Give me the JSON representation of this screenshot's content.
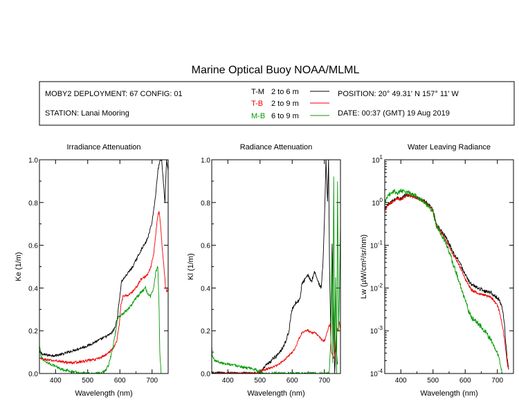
{
  "title": "Marine Optical Buoy NOAA/MLML",
  "info": {
    "deployment": "MOBY2 DEPLOYMENT: 67 CONFIG: 01",
    "station": "STATION: Lanai Mooring",
    "position": "POSITION: 20° 49.31' N   157° 11' W",
    "date": "DATE: 00:37 (GMT) 19 Aug 2019",
    "legend": [
      {
        "key": "T-M",
        "range": "2 to 6  m",
        "color": "#000000"
      },
      {
        "key": "T-B",
        "range": "2 to 9  m",
        "color": "#ee0000"
      },
      {
        "key": "M-B",
        "range": "6 to 9  m",
        "color": "#00a000"
      }
    ]
  },
  "chart_data": [
    {
      "type": "line",
      "title": "Irradiance Attenuation",
      "xlabel": "Wavelength (nm)",
      "ylabel": "Ke  (1/m)",
      "xlim": [
        350,
        750
      ],
      "ylim": [
        0,
        1
      ],
      "xticks": [
        400,
        500,
        600,
        700
      ],
      "xtick_labels": [
        "400",
        "500",
        "600",
        "700"
      ],
      "yticks": [
        0,
        0.2,
        0.4,
        0.6,
        0.8,
        1.0
      ],
      "ytick_labels": [
        "0.0",
        "0.2",
        "0.4",
        "0.6",
        "0.8",
        "1.0"
      ],
      "log_y": false,
      "series": [
        {
          "name": "T-M",
          "color": "#000000",
          "noise": 0.006,
          "x": [
            350,
            360,
            380,
            400,
            420,
            450,
            480,
            500,
            520,
            540,
            560,
            575,
            585,
            592,
            598,
            605,
            620,
            640,
            660,
            670,
            680,
            690,
            700,
            710,
            718,
            725,
            730,
            735,
            740,
            745,
            750
          ],
          "y": [
            0.1,
            0.09,
            0.085,
            0.085,
            0.09,
            0.105,
            0.12,
            0.13,
            0.145,
            0.16,
            0.175,
            0.19,
            0.215,
            0.26,
            0.34,
            0.43,
            0.46,
            0.5,
            0.56,
            0.59,
            0.61,
            0.65,
            0.71,
            0.82,
            0.95,
            1.0,
            1.0,
            0.9,
            0.8,
            1.0,
            0.95
          ]
        },
        {
          "name": "T-B",
          "color": "#ee0000",
          "noise": 0.006,
          "x": [
            350,
            370,
            390,
            400,
            420,
            450,
            480,
            500,
            520,
            540,
            560,
            580,
            590,
            598,
            603,
            610,
            630,
            650,
            665,
            675,
            685,
            695,
            705,
            712,
            718,
            722,
            726,
            732,
            738,
            742,
            746,
            750
          ],
          "y": [
            0.07,
            0.065,
            0.06,
            0.06,
            0.055,
            0.05,
            0.055,
            0.06,
            0.065,
            0.075,
            0.09,
            0.12,
            0.15,
            0.23,
            0.32,
            0.36,
            0.37,
            0.4,
            0.44,
            0.45,
            0.46,
            0.49,
            0.56,
            0.66,
            0.74,
            0.76,
            0.7,
            0.58,
            0.48,
            0.4,
            0.38,
            0.4
          ]
        },
        {
          "name": "M-B",
          "color": "#009900",
          "noise": 0.007,
          "x": [
            350,
            355,
            365,
            375,
            385,
            390,
            400,
            420,
            450,
            480,
            500,
            520,
            540,
            555,
            565,
            575,
            585,
            593,
            600,
            610,
            630,
            650,
            665,
            680,
            688,
            695,
            705,
            712,
            718,
            722,
            724,
            726,
            728
          ],
          "y": [
            0.13,
            0.08,
            0.06,
            0.05,
            0.045,
            0.04,
            0.035,
            0.02,
            0.01,
            0.0,
            0.0,
            0.0,
            0.0,
            0.01,
            0.04,
            0.1,
            0.18,
            0.26,
            0.27,
            0.28,
            0.31,
            0.35,
            0.38,
            0.4,
            0.37,
            0.36,
            0.4,
            0.48,
            0.5,
            0.3,
            0.1,
            0.05,
            0.0
          ]
        }
      ]
    },
    {
      "type": "line",
      "title": "Radiance Attenuation",
      "xlabel": "Wavelength (nm)",
      "ylabel": "Kl  (1/m)",
      "xlim": [
        350,
        750
      ],
      "ylim": [
        0,
        1
      ],
      "xticks": [
        400,
        500,
        600,
        700
      ],
      "xtick_labels": [
        "400",
        "500",
        "600",
        "700"
      ],
      "yticks": [
        0,
        0.2,
        0.4,
        0.6,
        0.8,
        1.0
      ],
      "ytick_labels": [
        "0.0",
        "0.2",
        "0.4",
        "0.6",
        "0.8",
        "1.0"
      ],
      "log_y": false,
      "series": [
        {
          "name": "T-M",
          "color": "#000000",
          "noise": 0.008,
          "x": [
            350,
            400,
            450,
            480,
            500,
            510,
            520,
            530,
            540,
            550,
            560,
            570,
            580,
            590,
            595,
            600,
            610,
            620,
            625,
            630,
            640,
            650,
            660,
            670,
            680,
            690,
            695,
            700,
            705,
            710,
            713,
            716,
            720,
            724,
            728,
            732,
            736,
            740
          ],
          "y": [
            0.0,
            0.0,
            0.0,
            0.0,
            0.0,
            0.02,
            0.04,
            0.05,
            0.07,
            0.08,
            0.1,
            0.12,
            0.15,
            0.2,
            0.26,
            0.3,
            0.33,
            0.34,
            0.35,
            0.42,
            0.44,
            0.46,
            0.43,
            0.48,
            0.43,
            0.4,
            0.5,
            0.7,
            1.0,
            0.8,
            1.0,
            0.5,
            0.2,
            0.6,
            0.3,
            0.0,
            0.15,
            0.05
          ]
        },
        {
          "name": "T-B",
          "color": "#ee0000",
          "noise": 0.005,
          "x": [
            350,
            420,
            470,
            490,
            500,
            510,
            520,
            540,
            560,
            580,
            600,
            610,
            620,
            630,
            640,
            650,
            660,
            670,
            680,
            690,
            700,
            710,
            714,
            718,
            722,
            726,
            730,
            734,
            738,
            742,
            746,
            750
          ],
          "y": [
            0.0,
            0.0,
            0.0,
            0.0,
            0.01,
            0.015,
            0.02,
            0.03,
            0.045,
            0.07,
            0.1,
            0.12,
            0.16,
            0.19,
            0.2,
            0.2,
            0.19,
            0.19,
            0.18,
            0.16,
            0.15,
            0.2,
            0.22,
            0.23,
            0.1,
            0.08,
            0.07,
            0.12,
            0.22,
            0.2,
            0.24,
            0.21
          ]
        },
        {
          "name": "M-B",
          "color": "#009900",
          "noise": 0.006,
          "x": [
            350,
            352,
            360,
            370,
            380,
            400,
            420,
            450,
            480,
            500,
            505,
            510,
            700,
            715,
            720,
            723,
            726,
            729,
            732,
            735,
            738,
            741,
            744,
            747,
            750
          ],
          "y": [
            0.13,
            0.08,
            0.06,
            0.055,
            0.05,
            0.045,
            0.04,
            0.03,
            0.02,
            0.01,
            0.0,
            0.0,
            0.0,
            0.0,
            0.15,
            0.55,
            0.05,
            0.92,
            0.1,
            0.45,
            0.0,
            0.9,
            0.2,
            0.4,
            0.7
          ]
        }
      ]
    },
    {
      "type": "line",
      "title": "Water Leaving Radiance",
      "xlabel": "Wavelength (nm)",
      "ylabel": "Lw  (µW/cm²/sr/nm)",
      "xlim": [
        350,
        750
      ],
      "ylim": [
        0.0001,
        10
      ],
      "xticks": [
        400,
        500,
        600,
        700
      ],
      "xtick_labels": [
        "400",
        "500",
        "600",
        "700"
      ],
      "log_y": true,
      "ytick_exponents": [
        -4,
        -3,
        -2,
        -1,
        0,
        1
      ],
      "series": [
        {
          "name": "T-M",
          "color": "#000000",
          "noise": 0.04,
          "x": [
            350,
            360,
            375,
            390,
            400,
            410,
            420,
            440,
            460,
            480,
            500,
            505,
            510,
            520,
            530,
            540,
            550,
            560,
            570,
            580,
            590,
            600,
            610,
            620,
            640,
            660,
            680,
            690,
            700,
            710,
            720,
            725,
            730,
            735
          ],
          "y": [
            0.7,
            0.9,
            1.1,
            1.3,
            1.2,
            1.4,
            1.5,
            1.4,
            1.2,
            1.0,
            0.65,
            0.45,
            0.3,
            0.25,
            0.2,
            0.15,
            0.11,
            0.075,
            0.055,
            0.045,
            0.03,
            0.02,
            0.015,
            0.012,
            0.01,
            0.0085,
            0.008,
            0.0065,
            0.006,
            0.0045,
            0.002,
            0.0006,
            0.00022,
            0.00012
          ]
        },
        {
          "name": "T-B",
          "color": "#ee0000",
          "noise": 0.03,
          "x": [
            350,
            360,
            375,
            390,
            400,
            410,
            420,
            440,
            460,
            480,
            500,
            505,
            510,
            520,
            530,
            540,
            550,
            560,
            570,
            580,
            590,
            600,
            610,
            620,
            640,
            660,
            680,
            690,
            700,
            710,
            720,
            725,
            730,
            735
          ],
          "y": [
            0.65,
            0.85,
            1.05,
            1.25,
            1.15,
            1.35,
            1.45,
            1.35,
            1.15,
            0.95,
            0.62,
            0.42,
            0.29,
            0.23,
            0.18,
            0.13,
            0.095,
            0.065,
            0.048,
            0.036,
            0.024,
            0.016,
            0.012,
            0.009,
            0.0075,
            0.0068,
            0.006,
            0.005,
            0.004,
            0.002,
            0.0008,
            0.0004,
            0.00018,
            0.00012
          ]
        },
        {
          "name": "M-B",
          "color": "#009900",
          "noise": 0.06,
          "x": [
            350,
            360,
            370,
            380,
            390,
            400,
            410,
            420,
            440,
            460,
            480,
            500,
            505,
            510,
            520,
            530,
            540,
            550,
            560,
            570,
            580,
            590,
            600,
            610,
            620,
            640,
            660,
            680,
            690,
            700,
            705,
            710,
            715
          ],
          "y": [
            1.0,
            1.4,
            1.7,
            1.9,
            1.6,
            2.0,
            1.8,
            1.7,
            1.5,
            1.2,
            0.9,
            0.6,
            0.4,
            0.28,
            0.21,
            0.16,
            0.11,
            0.07,
            0.04,
            0.025,
            0.015,
            0.008,
            0.005,
            0.003,
            0.002,
            0.0015,
            0.001,
            0.0006,
            0.0004,
            0.0003,
            0.00025,
            0.00015,
            0.0001
          ]
        }
      ]
    }
  ]
}
